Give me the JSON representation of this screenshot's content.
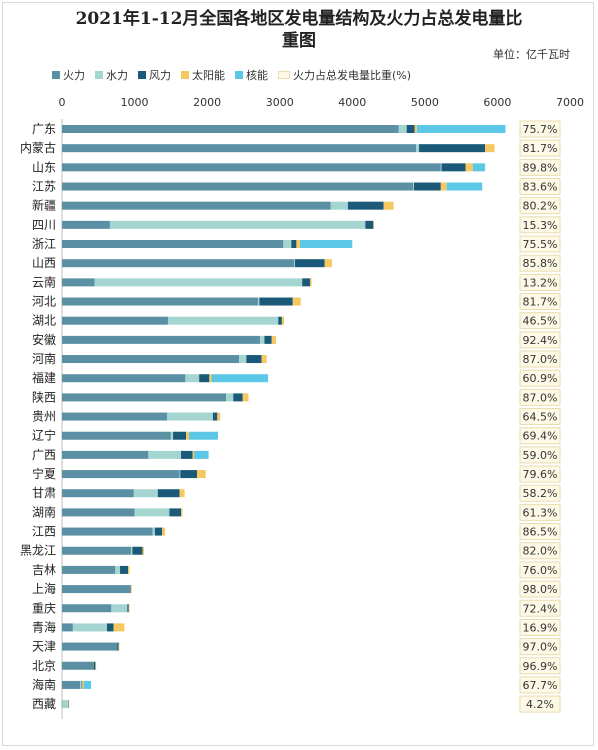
{
  "chart_data": {
    "type": "bar",
    "orientation": "horizontal",
    "stacked": true,
    "title": "2021年1-12月全国各地区发电量结构及火力占总发电量比重图",
    "title_line1": "2021年1-12月全国各地区发电量结构及火力占总发电量比",
    "title_line2": "重图",
    "unit": "单位：亿千瓦时",
    "xlim": [
      0,
      7000
    ],
    "x_ticks": [
      "0",
      "1000",
      "2000",
      "3000",
      "4000",
      "5000",
      "6000",
      "7000"
    ],
    "legend_position": "top",
    "grid": false,
    "ratio_legend": "火力占总发电量比重(%)",
    "colors": {
      "火力": "#5b8fa3",
      "水力": "#a5d5d1",
      "风力": "#1a5a78",
      "太阳能": "#f5c862",
      "核能": "#5bc8e8",
      "ratio_box_fill": "#fef9e7",
      "ratio_box_border": "#e9dcae"
    },
    "categories": [
      "广东",
      "内蒙古",
      "山东",
      "江苏",
      "新疆",
      "四川",
      "浙江",
      "山西",
      "云南",
      "河北",
      "湖北",
      "安徽",
      "河南",
      "福建",
      "陕西",
      "贵州",
      "辽宁",
      "广西",
      "宁夏",
      "甘肃",
      "湖南",
      "江西",
      "黑龙江",
      "吉林",
      "上海",
      "重庆",
      "青海",
      "天津",
      "北京",
      "海南",
      "西藏"
    ],
    "series": [
      {
        "name": "火力",
        "values": [
          4640,
          4880,
          5220,
          4840,
          3700,
          660,
          3050,
          3200,
          450,
          2700,
          1460,
          2730,
          2440,
          1700,
          2260,
          1450,
          1500,
          1190,
          1620,
          990,
          1000,
          1250,
          950,
          730,
          950,
          680,
          150,
          760,
          440,
          250,
          5
        ]
      },
      {
        "name": "水力",
        "values": [
          110,
          40,
          10,
          10,
          240,
          3520,
          110,
          10,
          2860,
          20,
          1520,
          60,
          100,
          190,
          100,
          630,
          30,
          450,
          10,
          330,
          480,
          30,
          20,
          70,
          0,
          220,
          470,
          0,
          0,
          20,
          80
        ]
      },
      {
        "name": "风力",
        "values": [
          110,
          910,
          330,
          370,
          490,
          110,
          70,
          410,
          110,
          460,
          50,
          100,
          210,
          140,
          130,
          60,
          180,
          160,
          230,
          300,
          160,
          100,
          140,
          110,
          0,
          20,
          90,
          20,
          20,
          10,
          5
        ]
      },
      {
        "name": "太阳能",
        "values": [
          30,
          130,
          100,
          80,
          140,
          10,
          50,
          100,
          20,
          110,
          30,
          60,
          70,
          30,
          80,
          40,
          40,
          20,
          120,
          70,
          20,
          40,
          20,
          20,
          10,
          10,
          150,
          10,
          10,
          20,
          10
        ]
      },
      {
        "name": "核能",
        "values": [
          1220,
          0,
          170,
          490,
          0,
          0,
          720,
          0,
          0,
          0,
          0,
          0,
          0,
          780,
          0,
          0,
          400,
          200,
          0,
          0,
          0,
          0,
          0,
          0,
          0,
          0,
          0,
          0,
          0,
          100,
          0
        ]
      }
    ],
    "ratio_values": [
      "75.7%",
      "81.7%",
      "89.8%",
      "83.6%",
      "80.2%",
      "15.3%",
      "75.5%",
      "85.8%",
      "13.2%",
      "81.7%",
      "46.5%",
      "92.4%",
      "87.0%",
      "60.9%",
      "87.0%",
      "64.5%",
      "69.4%",
      "59.0%",
      "79.6%",
      "58.2%",
      "61.3%",
      "86.5%",
      "82.0%",
      "76.0%",
      "98.0%",
      "72.4%",
      "16.9%",
      "97.0%",
      "96.9%",
      "67.7%",
      "4.2%"
    ]
  }
}
